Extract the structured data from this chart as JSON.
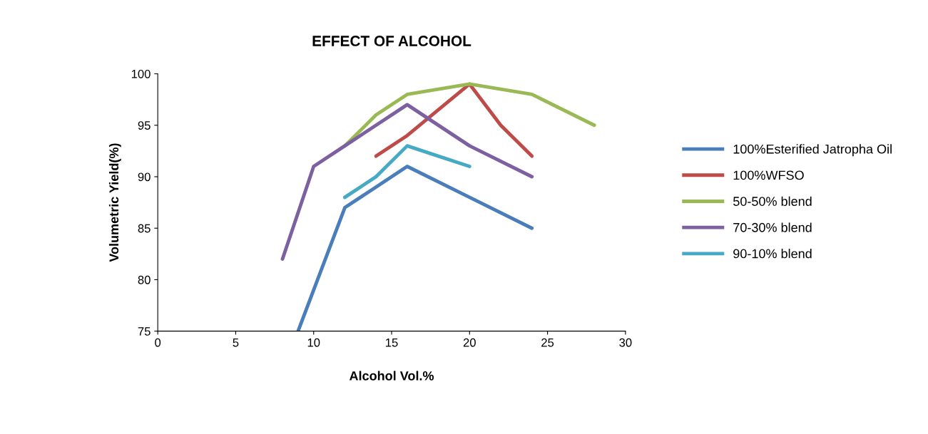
{
  "chart_data": {
    "type": "line",
    "title": "EFFECT OF ALCOHOL",
    "xlabel": "Alcohol Vol.%",
    "ylabel": "Volumetric Yield(%)",
    "xlim": [
      0,
      30
    ],
    "xticks": [
      0,
      5,
      10,
      15,
      20,
      25,
      30
    ],
    "ylim": [
      75,
      100
    ],
    "yticks": [
      75,
      80,
      85,
      90,
      95,
      100
    ],
    "grid": false,
    "legend": "right",
    "marker": "none",
    "line_style": "solid",
    "series": [
      {
        "name": "100%Esterified Jatropha Oil",
        "color": "#4a7ebb",
        "x": [
          9,
          12,
          14,
          16,
          20,
          24
        ],
        "values": [
          75,
          87,
          89,
          91,
          88,
          85
        ]
      },
      {
        "name": "100%WFSO",
        "color": "#be4b48",
        "x": [
          14,
          16,
          20,
          22,
          24
        ],
        "values": [
          92,
          94,
          99,
          95,
          92
        ]
      },
      {
        "name": "50-50% blend",
        "color": "#98b954",
        "x": [
          12,
          14,
          16,
          20,
          24,
          28
        ],
        "values": [
          93,
          96,
          98,
          99,
          98,
          95
        ]
      },
      {
        "name": "70-30% blend",
        "color": "#7d60a0",
        "x": [
          8,
          10,
          12,
          14,
          16,
          20,
          24
        ],
        "values": [
          82,
          91,
          93,
          95,
          97,
          93,
          90
        ]
      },
      {
        "name": "90-10% blend",
        "color": "#46aac5",
        "x": [
          12,
          14,
          16,
          18,
          20
        ],
        "values": [
          88,
          90,
          93,
          92,
          91
        ]
      }
    ]
  }
}
